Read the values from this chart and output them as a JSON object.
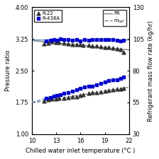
{
  "xlabel": "Chilled water inlet temperature (°C )",
  "ylabel_left": "Pressure ratio",
  "ylabel_right": "Refrigerant mass flow rate (kg/hr)",
  "xlim": [
    10,
    22
  ],
  "ylim_left": [
    1,
    4
  ],
  "ylim_right": [
    30,
    130
  ],
  "xticks": [
    10,
    13,
    16,
    19,
    22
  ],
  "yticks_left": [
    1,
    1.75,
    2.5,
    3.25,
    4
  ],
  "yticks_right": [
    30,
    55,
    80,
    105,
    130
  ],
  "PR_R22_x": [
    11.5,
    12.0,
    12.5,
    13.0,
    13.3,
    14.0,
    14.5,
    15.0,
    15.5,
    16.0,
    16.3,
    17.0,
    17.5,
    18.0,
    18.5,
    19.0,
    19.5,
    20.0,
    20.5,
    21.0,
    21.3
  ],
  "PR_R22_y": [
    3.13,
    3.16,
    3.18,
    3.17,
    3.17,
    3.15,
    3.13,
    3.12,
    3.12,
    3.12,
    3.11,
    3.1,
    3.09,
    3.08,
    3.07,
    3.06,
    3.05,
    3.03,
    3.02,
    3.01,
    2.94
  ],
  "PR_R438A_x": [
    11.8,
    12.3,
    12.7,
    13.1,
    13.5,
    14.0,
    14.5,
    15.0,
    15.5,
    16.0,
    16.5,
    17.0,
    17.5,
    18.0,
    18.5,
    19.0,
    19.5,
    20.0,
    20.5,
    21.0,
    21.3
  ],
  "PR_R438A_y": [
    3.2,
    3.22,
    3.24,
    3.22,
    3.25,
    3.24,
    3.23,
    3.22,
    3.24,
    3.21,
    3.23,
    3.22,
    3.24,
    3.23,
    3.23,
    3.24,
    3.23,
    3.23,
    3.22,
    3.21,
    3.22
  ],
  "mref_R22_x": [
    11.5,
    12.0,
    12.5,
    13.0,
    13.3,
    14.0,
    14.5,
    15.0,
    15.5,
    16.0,
    16.3,
    17.0,
    17.5,
    18.0,
    18.5,
    19.0,
    19.5,
    20.0,
    20.5,
    21.0,
    21.3
  ],
  "mref_R22_y": [
    56,
    57,
    57.5,
    57.5,
    58,
    58.5,
    59,
    59.5,
    59.5,
    60.5,
    61,
    62,
    62.5,
    63,
    63.5,
    64,
    64.5,
    65,
    65.5,
    65.5,
    66
  ],
  "mref_R438A_x": [
    11.8,
    12.3,
    12.7,
    13.1,
    13.5,
    14.0,
    14.5,
    15.0,
    15.5,
    16.0,
    16.5,
    17.0,
    17.5,
    18.0,
    18.5,
    19.0,
    19.5,
    20.0,
    20.5,
    21.0,
    21.3
  ],
  "mref_R438A_y": [
    58,
    59,
    60,
    60.5,
    61,
    62,
    63,
    64,
    65,
    66,
    67,
    67.5,
    68,
    69,
    70,
    71,
    72,
    72.5,
    73,
    74,
    75
  ],
  "color_R22": "#333333",
  "color_R438A": "#0000cc",
  "color_PR_R22_line": "#777777",
  "color_PR_R438A_line": "#6699cc",
  "color_mref_R22_line": "#777777",
  "color_mref_R438A_line": "#6699cc",
  "marker_R22": "^",
  "marker_R438A": "s",
  "markersize": 3.5,
  "linewidth": 1.0
}
